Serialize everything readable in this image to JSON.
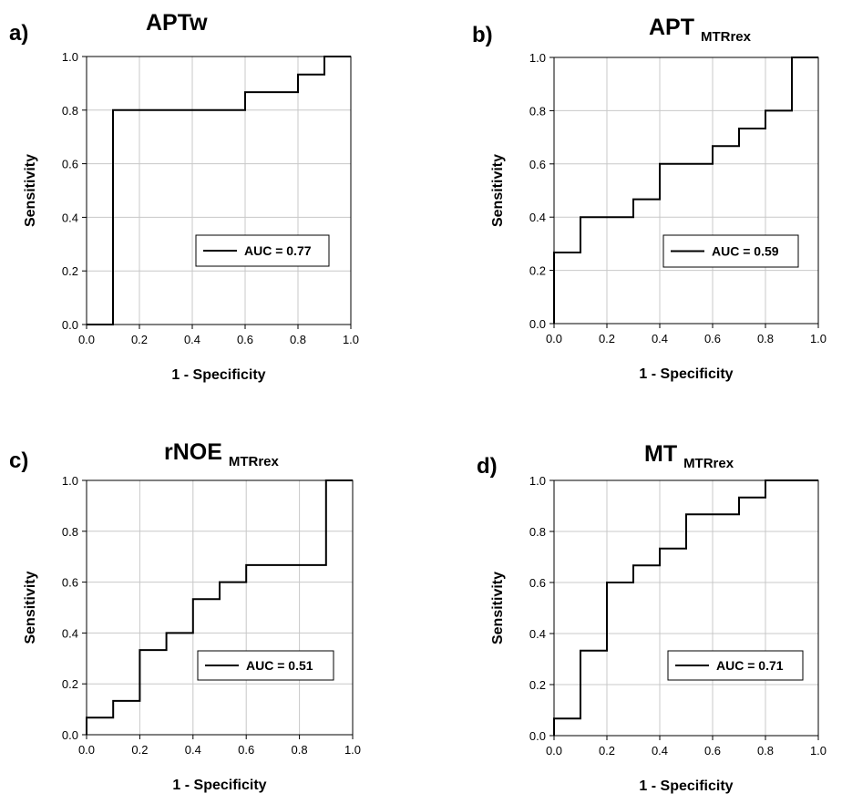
{
  "chart_data": [
    {
      "type": "line",
      "panel_label": "a)",
      "title": "APTw",
      "title_sub": "",
      "xlabel": "1 - Specificity",
      "ylabel": "Sensitivity",
      "xlim": [
        0,
        1
      ],
      "ylim": [
        0,
        1
      ],
      "xticks": [
        "0.0",
        "0.2",
        "0.4",
        "0.6",
        "0.8",
        "1.0"
      ],
      "yticks": [
        "0.0",
        "0.2",
        "0.4",
        "0.6",
        "0.8",
        "1.0"
      ],
      "grid": true,
      "legend": "AUC = 0.77",
      "legend_position": "lower-right",
      "series": [
        {
          "name": "AUC = 0.77",
          "x": [
            0,
            0.1,
            0.1,
            0.6,
            0.6,
            0.8,
            0.8,
            0.9,
            0.9,
            1.0
          ],
          "y": [
            0,
            0,
            0.8,
            0.8,
            0.867,
            0.867,
            0.933,
            0.933,
            1.0,
            1.0
          ]
        }
      ]
    },
    {
      "type": "line",
      "panel_label": "b)",
      "title": "APT",
      "title_sub": "MTRrex",
      "xlabel": "1 - Specificity",
      "ylabel": "Sensitivity",
      "xlim": [
        0,
        1
      ],
      "ylim": [
        0,
        1
      ],
      "xticks": [
        "0.0",
        "0.2",
        "0.4",
        "0.6",
        "0.8",
        "1.0"
      ],
      "yticks": [
        "0.0",
        "0.2",
        "0.4",
        "0.6",
        "0.8",
        "1.0"
      ],
      "grid": true,
      "legend": "AUC = 0.59",
      "legend_position": "lower-right",
      "series": [
        {
          "name": "AUC = 0.59",
          "x": [
            0,
            0,
            0.1,
            0.1,
            0.3,
            0.3,
            0.4,
            0.4,
            0.6,
            0.6,
            0.7,
            0.7,
            0.8,
            0.8,
            0.9,
            0.9,
            1.0
          ],
          "y": [
            0,
            0.267,
            0.267,
            0.4,
            0.4,
            0.467,
            0.467,
            0.6,
            0.6,
            0.667,
            0.667,
            0.733,
            0.733,
            0.8,
            0.8,
            1.0,
            1.0
          ]
        }
      ]
    },
    {
      "type": "line",
      "panel_label": "c)",
      "title": "rNOE",
      "title_sub": "MTRrex",
      "xlabel": "1 - Specificity",
      "ylabel": "Sensitivity",
      "xlim": [
        0,
        1
      ],
      "ylim": [
        0,
        1
      ],
      "xticks": [
        "0.0",
        "0.2",
        "0.4",
        "0.6",
        "0.8",
        "1.0"
      ],
      "yticks": [
        "0.0",
        "0.2",
        "0.4",
        "0.6",
        "0.8",
        "1.0"
      ],
      "grid": true,
      "legend": "AUC = 0.51",
      "legend_position": "lower-right",
      "series": [
        {
          "name": "AUC = 0.51",
          "x": [
            0,
            0,
            0.1,
            0.1,
            0.2,
            0.2,
            0.3,
            0.3,
            0.4,
            0.4,
            0.5,
            0.5,
            0.6,
            0.6,
            0.9,
            0.9,
            1.0
          ],
          "y": [
            0,
            0.067,
            0.067,
            0.133,
            0.133,
            0.333,
            0.333,
            0.4,
            0.4,
            0.533,
            0.533,
            0.6,
            0.6,
            0.667,
            0.667,
            1.0,
            1.0
          ]
        }
      ]
    },
    {
      "type": "line",
      "panel_label": "d)",
      "title": "MT",
      "title_sub": "MTRrex",
      "xlabel": "1 - Specificity",
      "ylabel": "Sensitivity",
      "xlim": [
        0,
        1
      ],
      "ylim": [
        0,
        1
      ],
      "xticks": [
        "0.0",
        "0.2",
        "0.4",
        "0.6",
        "0.8",
        "1.0"
      ],
      "yticks": [
        "0.0",
        "0.2",
        "0.4",
        "0.6",
        "0.8",
        "1.0"
      ],
      "grid": true,
      "legend": "AUC = 0.71",
      "legend_position": "lower-right",
      "series": [
        {
          "name": "AUC = 0.71",
          "x": [
            0,
            0,
            0.1,
            0.1,
            0.2,
            0.2,
            0.3,
            0.3,
            0.4,
            0.4,
            0.5,
            0.5,
            0.7,
            0.7,
            0.8,
            0.8,
            1.0
          ],
          "y": [
            0,
            0.067,
            0.067,
            0.333,
            0.333,
            0.6,
            0.6,
            0.667,
            0.667,
            0.733,
            0.733,
            0.867,
            0.867,
            0.933,
            0.933,
            1.0,
            1.0
          ]
        }
      ]
    }
  ]
}
